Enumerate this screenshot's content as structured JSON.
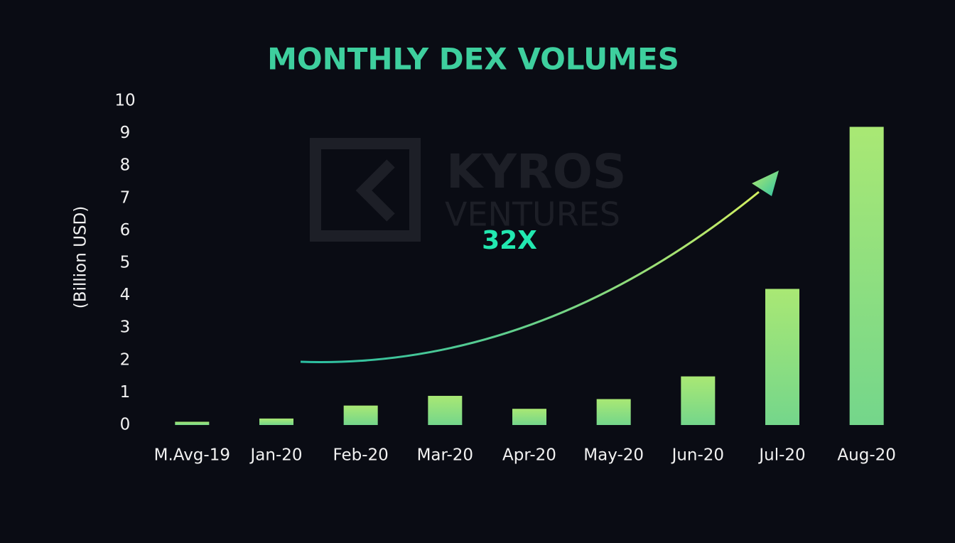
{
  "chart_data": {
    "type": "bar",
    "title": "MONTHLY DEX VOLUMES",
    "y_label": "(Billion USD)",
    "annotation": "32X",
    "watermark": {
      "brand": "KYROS",
      "sub": "VENTURES"
    },
    "categories": [
      "M.Avg-19",
      "Jan-20",
      "Feb-20",
      "Mar-20",
      "Apr-20",
      "May-20",
      "Jun-20",
      "Jul-20",
      "Aug-20"
    ],
    "values": [
      0.1,
      0.2,
      0.6,
      0.9,
      0.5,
      0.8,
      1.5,
      4.2,
      9.2
    ],
    "color": "#8fe07e",
    "ylim": [
      0,
      10
    ],
    "yticks": [
      0,
      1,
      2,
      3,
      4,
      5,
      6,
      7,
      8,
      9,
      10
    ],
    "grid": false
  }
}
